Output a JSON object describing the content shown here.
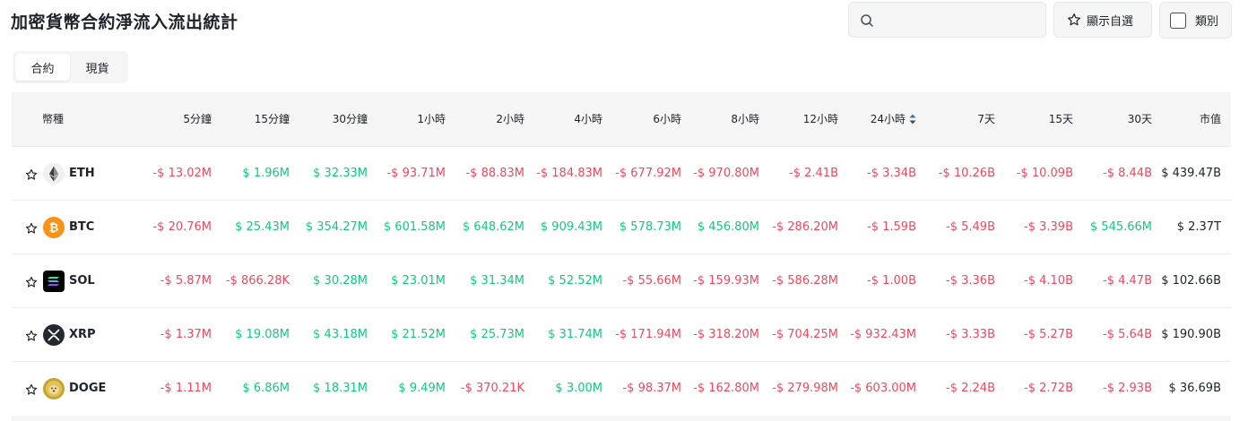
{
  "page": {
    "title": "加密貨幣合約淨流入流出統計"
  },
  "toolbar": {
    "search_placeholder": "",
    "fav_label": "顯示自選",
    "category_label": "類別"
  },
  "tabs": [
    {
      "label": "合約",
      "active": true
    },
    {
      "label": "現貨",
      "active": false
    }
  ],
  "table": {
    "columns": [
      "幣種",
      "5分鐘",
      "15分鐘",
      "30分鐘",
      "1小時",
      "2小時",
      "4小時",
      "6小時",
      "8小時",
      "12小時",
      "24小時",
      "7天",
      "15天",
      "30天",
      "市值"
    ],
    "sorted_column": "24小時",
    "rows": [
      {
        "symbol": "ETH",
        "icon": "eth-icon",
        "cells": [
          "-$ 13.02M",
          "$ 1.96M",
          "$ 32.33M",
          "-$ 93.71M",
          "-$ 88.83M",
          "-$ 184.83M",
          "-$ 677.92M",
          "-$ 970.80M",
          "-$ 2.41B",
          "-$ 3.34B",
          "-$ 10.26B",
          "-$ 10.09B",
          "-$ 8.44B"
        ],
        "market_cap": "$ 439.47B"
      },
      {
        "symbol": "BTC",
        "icon": "btc-icon",
        "cells": [
          "-$ 20.76M",
          "$ 25.43M",
          "$ 354.27M",
          "$ 601.58M",
          "$ 648.62M",
          "$ 909.43M",
          "$ 578.73M",
          "$ 456.80M",
          "-$ 286.20M",
          "-$ 1.59B",
          "-$ 5.49B",
          "-$ 3.39B",
          "$ 545.66M"
        ],
        "market_cap": "$ 2.37T"
      },
      {
        "symbol": "SOL",
        "icon": "sol-icon",
        "cells": [
          "-$ 5.87M",
          "-$ 866.28K",
          "$ 30.28M",
          "$ 23.01M",
          "$ 31.34M",
          "$ 52.52M",
          "-$ 55.66M",
          "-$ 159.93M",
          "-$ 586.28M",
          "-$ 1.00B",
          "-$ 3.36B",
          "-$ 4.10B",
          "-$ 4.47B"
        ],
        "market_cap": "$ 102.66B"
      },
      {
        "symbol": "XRP",
        "icon": "xrp-icon",
        "cells": [
          "-$ 1.37M",
          "$ 19.08M",
          "$ 43.18M",
          "$ 21.52M",
          "$ 25.73M",
          "$ 31.74M",
          "-$ 171.94M",
          "-$ 318.20M",
          "-$ 704.25M",
          "-$ 932.43M",
          "-$ 3.33B",
          "-$ 5.27B",
          "-$ 5.64B"
        ],
        "market_cap": "$ 190.90B"
      },
      {
        "symbol": "DOGE",
        "icon": "doge-icon",
        "cells": [
          "-$ 1.11M",
          "$ 6.86M",
          "$ 18.31M",
          "$ 9.49M",
          "-$ 370.21K",
          "$ 3.00M",
          "-$ 98.37M",
          "-$ 162.80M",
          "-$ 279.98M",
          "-$ 603.00M",
          "-$ 2.24B",
          "-$ 2.72B",
          "-$ 2.93B"
        ],
        "market_cap": "$ 36.69B"
      }
    ]
  },
  "colors": {
    "negative": "#f6465d",
    "positive": "#0ecb81",
    "sort_accent": "#3375bb"
  }
}
